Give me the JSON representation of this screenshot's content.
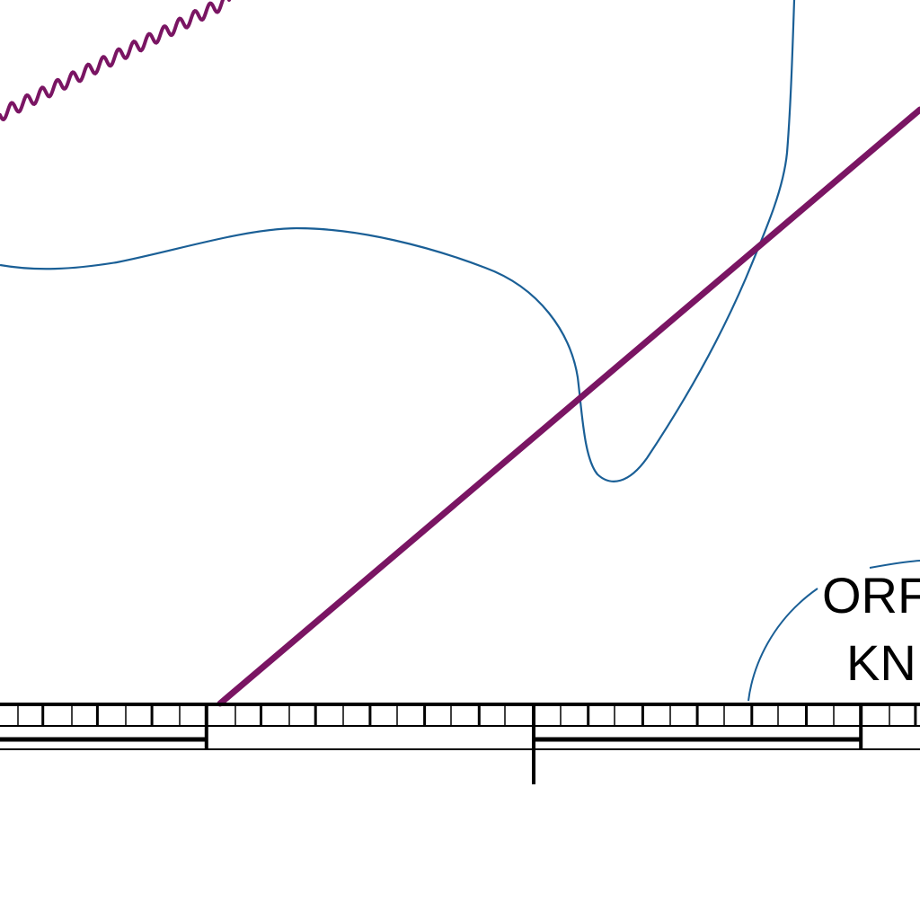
{
  "map": {
    "labels": {
      "line1": "ORF",
      "line2": "KN"
    },
    "colors": {
      "route_line": "#7a1563",
      "wavy_boundary": "#7a1563",
      "contour": "#1a5f96",
      "leader_line": "#1a5f96",
      "scale_bar": "#000000",
      "background": "#ffffff",
      "text": "#000000"
    },
    "elements": {
      "route": "straight-route-line",
      "boundary": "wavy-boundary-line",
      "contour": "curved-contour-line",
      "scale": "segmented-scale-bar"
    }
  }
}
